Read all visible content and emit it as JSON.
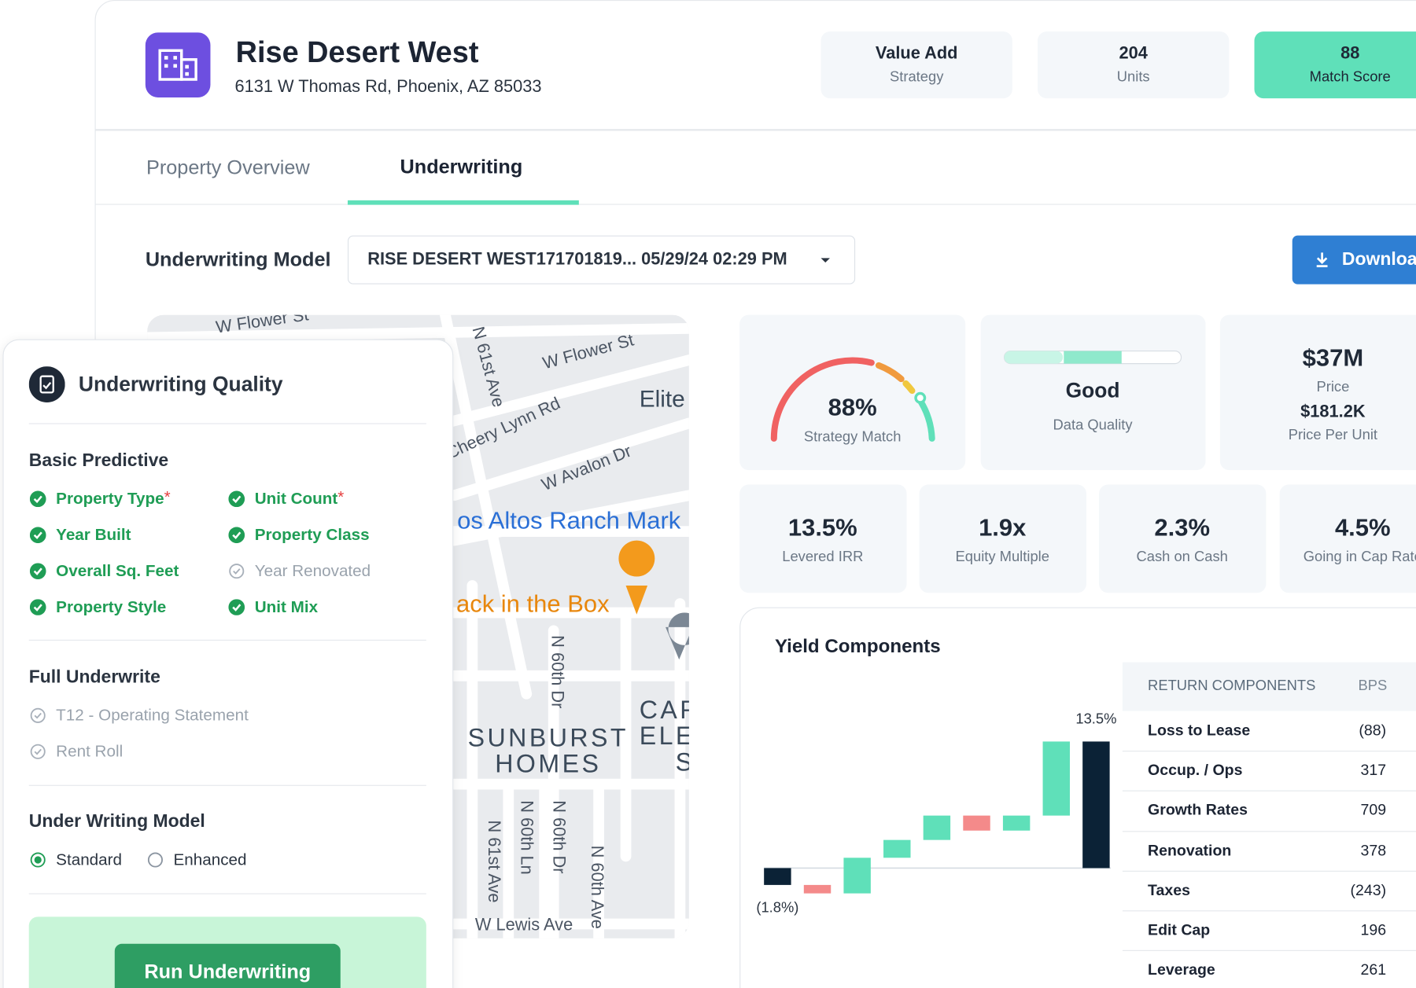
{
  "header": {
    "title": "Rise Desert West",
    "address": "6131 W Thomas Rd, Phoenix, AZ 85033",
    "stats": [
      {
        "value": "Value Add",
        "label": "Strategy"
      },
      {
        "value": "204",
        "label": "Units"
      },
      {
        "value": "88",
        "label": "Match Score"
      }
    ]
  },
  "tabs": [
    "Property Overview",
    "Underwriting"
  ],
  "model": {
    "label": "Underwriting Model",
    "selected": "RISE DESERT WEST171701819... 05/29/24 02:29 PM",
    "download": "Download"
  },
  "quality": {
    "title": "Underwriting Quality",
    "sections": [
      {
        "title": "Basic Predictive",
        "items": [
          {
            "label": "Property Type",
            "done": true,
            "mark": "*"
          },
          {
            "label": "Unit Count",
            "done": true,
            "mark": "*"
          },
          {
            "label": "Year Built",
            "done": true
          },
          {
            "label": "Property Class",
            "done": true
          },
          {
            "label": "Overall Sq. Feet",
            "done": true
          },
          {
            "label": "Year Renovated",
            "done": false
          },
          {
            "label": "Property Style",
            "done": true
          },
          {
            "label": "Unit Mix",
            "done": true
          }
        ]
      },
      {
        "title": "Full Underwrite",
        "items": [
          {
            "label": "T12 - Operating Statement",
            "done": false
          },
          {
            "label": "Rent Roll",
            "done": false
          }
        ]
      }
    ],
    "model_title": "Under Writing Model",
    "options": [
      "Standard",
      "Enhanced"
    ],
    "selected_option": 0,
    "button": "Run Underwriting"
  },
  "map": {
    "labels": [
      "W Flower St",
      "W Flower St",
      "N 61st Ave",
      "Elite",
      "Cheery Lynn Rd",
      "W Avalon Dr",
      "os Altos Ranch Mark",
      "ack in the Box",
      "N 60th Dr",
      "SUNBURST",
      "HOMES",
      "CAR",
      "ELE",
      "S",
      "N 61st Ave",
      "N 60th Ln",
      "N 60th Dr",
      "N 60th Ave",
      "W Lewis Ave"
    ]
  },
  "metrics": {
    "strategy": {
      "value": "88%",
      "label": "Strategy Match"
    },
    "quality": {
      "value": "Good",
      "label": "Data Quality"
    },
    "price": {
      "value": "$37M",
      "label": "Price",
      "per_unit": "$181.2K",
      "per_unit_label": "Price Per Unit"
    },
    "returns": [
      {
        "value": "13.5%",
        "label": "Levered IRR"
      },
      {
        "value": "1.9x",
        "label": "Equity Multiple"
      },
      {
        "value": "2.3%",
        "label": "Cash on Cash"
      },
      {
        "value": "4.5%",
        "label": "Going in Cap Rate"
      }
    ]
  },
  "chart_data": {
    "type": "waterfall",
    "title": "Yield Components",
    "categories": [
      null,
      null,
      null,
      null,
      null,
      null,
      null,
      null,
      null
    ],
    "values": [
      -1.8,
      -0.9,
      3.8,
      1.9,
      2.6,
      -1.6,
      1.6,
      7.9,
      13.5
    ],
    "value_labels": [
      "(1.8%)",
      null,
      null,
      null,
      null,
      null,
      null,
      null,
      "13.5%"
    ],
    "colors": {
      "increase": "#5fe0b9",
      "decrease": "#f48a8a",
      "total": "#0b2236"
    },
    "ylim": [
      -7.5,
      15.6
    ]
  },
  "table": {
    "header": [
      "RETURN COMPONENTS",
      "BPS"
    ],
    "rows": [
      [
        "Loss to Lease",
        "(88)"
      ],
      [
        "Occup. / Ops",
        "317"
      ],
      [
        "Growth Rates",
        "709"
      ],
      [
        "Renovation",
        "378"
      ],
      [
        "Taxes",
        "(243)"
      ],
      [
        "Edit Cap",
        "196"
      ],
      [
        "Leverage",
        "261"
      ]
    ]
  }
}
